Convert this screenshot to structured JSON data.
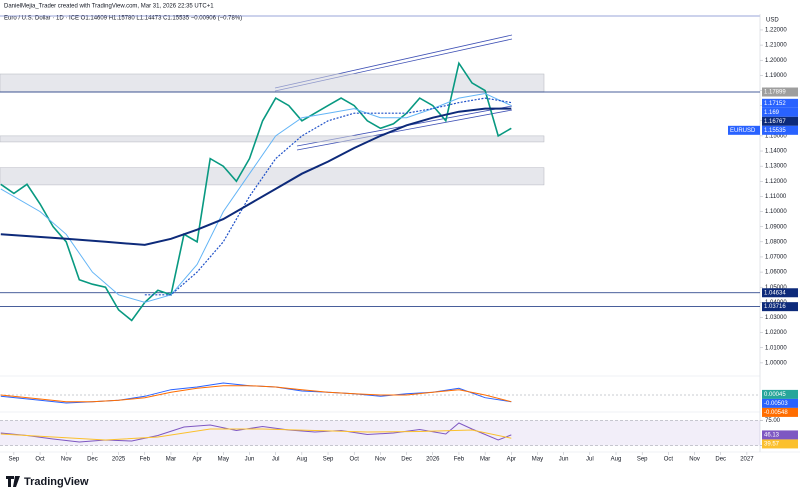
{
  "header": {
    "credit": "DanielMejia_Trader created with TradingView.com, Mar 31, 2026 22:35 UTC+1",
    "symbol_info": "Euro / U.S. Dollar · 1D · ICE   O1.14609 H1.15780 L1.14473 C1.15535 −0.00906 (−0.78%)"
  },
  "currency": "USD",
  "price_tag": "EURUSD",
  "footer": {
    "brand": "TradingView"
  },
  "chart_data": [
    {
      "type": "line",
      "xlim": [
        -0.53,
        28.5
      ],
      "xticks": [
        {
          "value": 0,
          "label": "Sep"
        },
        {
          "value": 1,
          "label": "Oct"
        },
        {
          "value": 2,
          "label": "Nov"
        },
        {
          "value": 3,
          "label": "Dec"
        },
        {
          "value": 4,
          "label": "2025"
        },
        {
          "value": 5,
          "label": "Feb"
        },
        {
          "value": 6,
          "label": "Mar"
        },
        {
          "value": 7,
          "label": "Apr"
        },
        {
          "value": 8,
          "label": "May"
        },
        {
          "value": 9,
          "label": "Jun"
        },
        {
          "value": 10,
          "label": "Jul"
        },
        {
          "value": 11,
          "label": "Aug"
        },
        {
          "value": 12,
          "label": "Sep"
        },
        {
          "value": 13,
          "label": "Oct"
        },
        {
          "value": 14,
          "label": "Nov"
        },
        {
          "value": 15,
          "label": "Dec"
        },
        {
          "value": 16,
          "label": "2026"
        },
        {
          "value": 17,
          "label": "Feb"
        },
        {
          "value": 18,
          "label": "Mar"
        },
        {
          "value": 19,
          "label": "Apr"
        },
        {
          "value": 20,
          "label": "May"
        },
        {
          "value": 21,
          "label": "Jun"
        },
        {
          "value": 22,
          "label": "Jul"
        },
        {
          "value": 23,
          "label": "Aug"
        },
        {
          "value": 24,
          "label": "Sep"
        },
        {
          "value": 25,
          "label": "Oct"
        },
        {
          "value": 26,
          "label": "Nov"
        },
        {
          "value": 27,
          "label": "Dec"
        },
        {
          "value": 28,
          "label": "2027"
        }
      ],
      "ylim": [
        0.992,
        1.2279
      ],
      "yticks": [
        {
          "value": 1.0,
          "label": "1.00000"
        },
        {
          "value": 1.01,
          "label": "1.01000"
        },
        {
          "value": 1.02,
          "label": "1.02000"
        },
        {
          "value": 1.03,
          "label": "1.03000"
        },
        {
          "value": 1.04,
          "label": "1.04000"
        },
        {
          "value": 1.05,
          "label": "1.05000"
        },
        {
          "value": 1.06,
          "label": "1.06000"
        },
        {
          "value": 1.07,
          "label": "1.07000"
        },
        {
          "value": 1.08,
          "label": "1.08000"
        },
        {
          "value": 1.09,
          "label": "1.09000"
        },
        {
          "value": 1.1,
          "label": "1.10000"
        },
        {
          "value": 1.11,
          "label": "1.11000"
        },
        {
          "value": 1.12,
          "label": "1.12000"
        },
        {
          "value": 1.13,
          "label": "1.13000"
        },
        {
          "value": 1.14,
          "label": "1.14000"
        },
        {
          "value": 1.15,
          "label": "1.15000"
        },
        {
          "value": 1.16,
          "label": "1.16000"
        },
        {
          "value": 1.17,
          "label": "1.17000"
        },
        {
          "value": 1.18,
          "label": "1.18000"
        },
        {
          "value": 1.19,
          "label": "1.19000"
        },
        {
          "value": 1.2,
          "label": "1.20000"
        },
        {
          "value": 1.21,
          "label": "1.21000"
        },
        {
          "value": 1.22,
          "label": "1.22000"
        }
      ],
      "zones": [
        [
          1.179,
          1.1909
        ],
        [
          1.146,
          1.15
        ],
        [
          1.1176,
          1.129
        ]
      ],
      "levels": [
        1.17899,
        1.04634,
        1.03716
      ],
      "series": [
        {
          "color": "#089981",
          "width": 1.6,
          "x": [
            -0.5,
            0,
            0.5,
            1,
            1.5,
            2,
            2.5,
            3,
            3.5,
            4,
            4.5,
            5,
            5.5,
            6,
            6.5,
            7,
            7.5,
            8,
            8.5,
            9,
            9.5,
            10,
            10.5,
            11,
            11.5,
            12,
            12.5,
            13,
            13.5,
            14,
            14.5,
            15,
            15.5,
            16,
            16.5,
            17,
            17.5,
            18,
            18.5,
            19
          ],
          "values": [
            1.118,
            1.112,
            1.118,
            1.105,
            1.09,
            1.08,
            1.055,
            1.052,
            1.05,
            1.035,
            1.028,
            1.04,
            1.048,
            1.045,
            1.085,
            1.08,
            1.135,
            1.13,
            1.12,
            1.135,
            1.16,
            1.175,
            1.17,
            1.16,
            1.165,
            1.17,
            1.175,
            1.17,
            1.16,
            1.155,
            1.158,
            1.165,
            1.175,
            1.17,
            1.16,
            1.198,
            1.185,
            1.18,
            1.15,
            1.155
          ]
        },
        {
          "color": "#64b5f6",
          "width": 1,
          "x": [
            -0.5,
            1,
            2,
            3,
            4,
            5,
            6,
            7,
            8,
            9,
            10,
            11,
            12,
            13,
            14,
            15,
            16,
            17,
            18,
            19
          ],
          "values": [
            1.115,
            1.1,
            1.085,
            1.06,
            1.045,
            1.04,
            1.045,
            1.065,
            1.1,
            1.125,
            1.15,
            1.162,
            1.165,
            1.168,
            1.162,
            1.162,
            1.168,
            1.175,
            1.178,
            1.17
          ]
        },
        {
          "color": "#1e50c8",
          "width": 1.2,
          "dash": true,
          "x": [
            5,
            6,
            7,
            8,
            9,
            10,
            11,
            12,
            13,
            14,
            15,
            16,
            17,
            18,
            19
          ],
          "values": [
            1.045,
            1.045,
            1.06,
            1.08,
            1.11,
            1.135,
            1.15,
            1.16,
            1.165,
            1.165,
            1.165,
            1.168,
            1.172,
            1.175,
            1.172
          ]
        },
        {
          "color": "#0d2a7a",
          "width": 2,
          "x": [
            -0.5,
            2,
            3.5,
            5,
            6,
            7,
            8,
            9,
            10,
            11,
            12,
            13,
            14,
            15,
            16,
            17,
            18,
            19
          ],
          "values": [
            1.085,
            1.082,
            1.08,
            1.078,
            1.082,
            1.088,
            1.095,
            1.105,
            1.115,
            1.125,
            1.133,
            1.142,
            1.15,
            1.157,
            1.162,
            1.166,
            1.168,
            1.168
          ]
        }
      ],
      "price_labels": [
        1.17899,
        1.17152,
        1.169,
        1.16767,
        1.15535,
        1.04634,
        1.03716
      ],
      "price_label_colors": [
        "#9e9e9e",
        "#2962ff",
        "#2962ff",
        "#0d2a7a",
        "#2962ff",
        "#0d2a7a",
        "#0d2a7a"
      ]
    },
    {
      "type": "line",
      "xlim": [
        -0.53,
        28.5
      ],
      "ylim": [
        -0.012,
        0.012
      ],
      "series": [
        {
          "color": "#2962ff",
          "width": 1,
          "x": [
            -0.5,
            1,
            2,
            3,
            4,
            5,
            6,
            7,
            8,
            9,
            10,
            11,
            12,
            13,
            14,
            15,
            16,
            17,
            18,
            19
          ],
          "values": [
            -0.001,
            -0.004,
            -0.006,
            -0.005,
            -0.004,
            -0.001,
            0.004,
            0.006,
            0.009,
            0.007,
            0.006,
            0.003,
            0.002,
            0.001,
            -0.001,
            0.001,
            0.002,
            0.005,
            -0.002,
            -0.005
          ]
        },
        {
          "color": "#ff6d00",
          "width": 1,
          "x": [
            -0.5,
            1,
            2,
            3,
            4,
            5,
            6,
            7,
            8,
            9,
            10,
            11,
            12,
            13,
            14,
            15,
            16,
            17,
            18,
            19
          ],
          "values": [
            0.0,
            -0.003,
            -0.005,
            -0.005,
            -0.004,
            -0.002,
            0.002,
            0.005,
            0.007,
            0.007,
            0.006,
            0.004,
            0.002,
            0.001,
            0.0,
            0.0,
            0.002,
            0.004,
            0.0,
            -0.005
          ]
        }
      ],
      "price_labels": [
        0.00045,
        -0.00503,
        -0.00548
      ],
      "price_label_colors": [
        "#26a69a",
        "#2962ff",
        "#ff6d00"
      ]
    },
    {
      "type": "line",
      "xlim": [
        -0.53,
        28.5
      ],
      "ylim": [
        20,
        88
      ],
      "yticks": [
        {
          "value": 75,
          "label": "75.00"
        },
        {
          "value": 25,
          "label": "25.00"
        }
      ],
      "series": [
        {
          "color": "#7e57c2",
          "width": 1,
          "x": [
            -0.5,
            0.5,
            1.5,
            2.5,
            3.5,
            4.5,
            5.5,
            6.5,
            7.5,
            8.5,
            9.5,
            10.5,
            11.5,
            12.5,
            13.5,
            14.5,
            15.5,
            16.5,
            17,
            17.5,
            18.5,
            19
          ],
          "values": [
            50,
            45,
            38,
            32,
            36,
            34,
            45,
            62,
            66,
            55,
            63,
            56,
            52,
            55,
            47,
            50,
            57,
            48,
            70,
            58,
            36,
            46.13
          ]
        },
        {
          "color": "#fbc02d",
          "width": 1,
          "x": [
            -0.5,
            1.5,
            3.5,
            5.5,
            7.5,
            9.5,
            11.5,
            13.5,
            15.5,
            17.5,
            19
          ],
          "values": [
            48,
            42,
            36,
            42,
            58,
            58,
            55,
            52,
            53,
            56,
            39.57
          ]
        }
      ],
      "price_labels": [
        46.13,
        39.57
      ],
      "price_label_colors": [
        "#7e57c2",
        "#fbc02d"
      ]
    }
  ]
}
